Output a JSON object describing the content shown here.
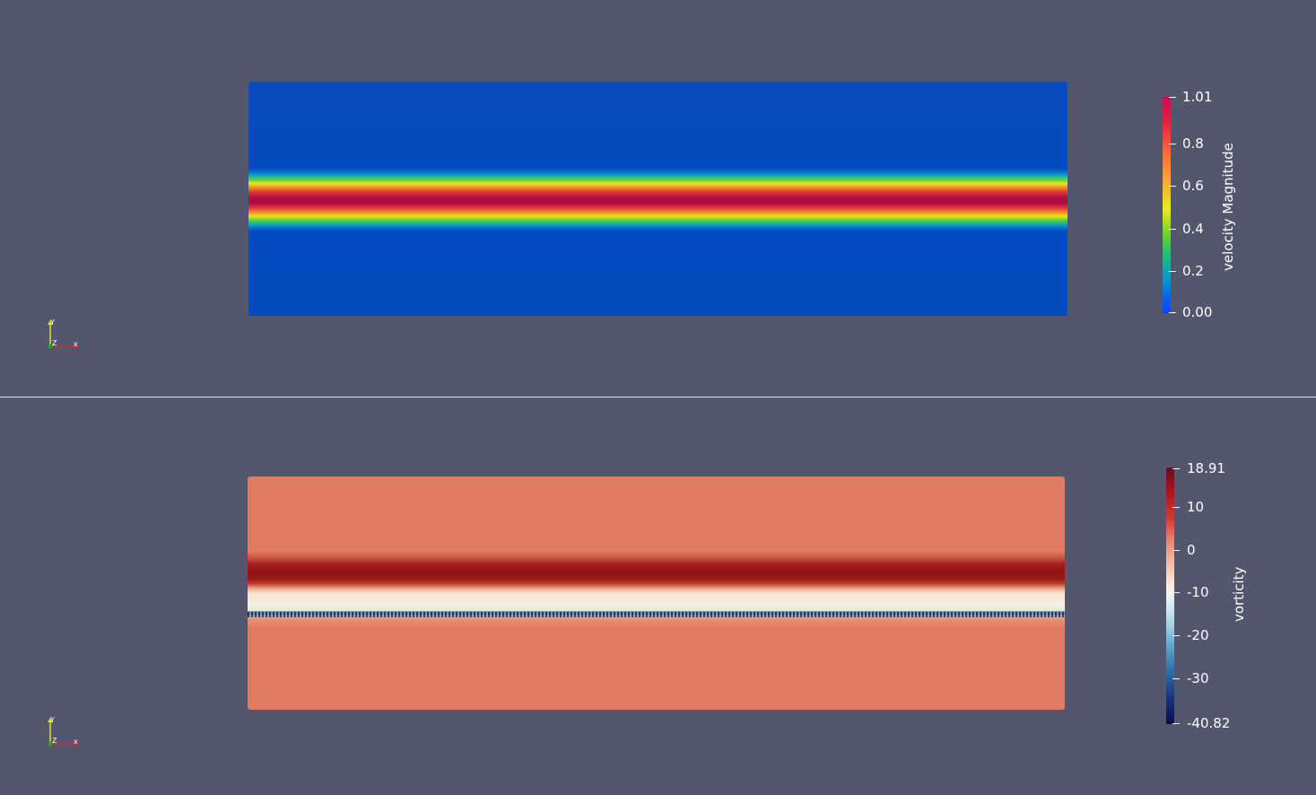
{
  "views": {
    "top": {
      "field_name": "velocity Magnitude",
      "colorbar": {
        "title": "velocity Magnitude",
        "range": [
          0.0,
          1.01
        ],
        "ticks": [
          "1.01",
          "0.8",
          "0.6",
          "0.4",
          "0.2",
          "0.00"
        ],
        "colormap": "Turbo"
      },
      "axes": {
        "x": "x",
        "y": "Y",
        "z": "Z"
      }
    },
    "bottom": {
      "field_name": "vorticity",
      "colorbar": {
        "title": "vorticity",
        "range": [
          -40.82,
          18.91
        ],
        "ticks": [
          "18.91",
          "10",
          "0",
          "-10",
          "-20",
          "-30",
          "-40.82"
        ],
        "colormap": "Red-Blue diverging"
      },
      "axes": {
        "x": "x",
        "y": "Y",
        "z": "Z"
      }
    }
  },
  "colors": {
    "background": "#52576e",
    "separator": "#e6e6e6",
    "text": "#ffffff",
    "axis_x": "#d62728",
    "axis_y": "#e3e31c",
    "axis_z": "#2ca02c"
  }
}
